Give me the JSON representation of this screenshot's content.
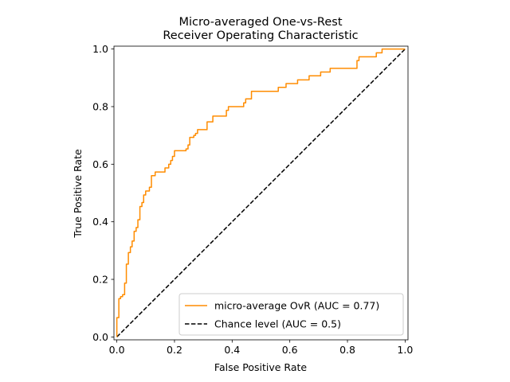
{
  "chart_data": {
    "type": "line",
    "title": [
      "Micro-averaged One-vs-Rest",
      "Receiver Operating Characteristic"
    ],
    "xlabel": "False Positive Rate",
    "ylabel": "True Positive Rate",
    "xlim": [
      -0.01,
      1.01
    ],
    "ylim": [
      -0.01,
      1.01
    ],
    "xticks": [
      0.0,
      0.2,
      0.4,
      0.6,
      0.8,
      1.0
    ],
    "xtick_labels": [
      "0.0",
      "0.2",
      "0.4",
      "0.6",
      "0.8",
      "1.0"
    ],
    "yticks": [
      0.0,
      0.2,
      0.4,
      0.6,
      0.8,
      1.0
    ],
    "ytick_labels": [
      "0.0",
      "0.2",
      "0.4",
      "0.6",
      "0.8",
      "1.0"
    ],
    "grid": false,
    "legend_position": "lower-right",
    "series": [
      {
        "name": "micro-average OvR (AUC = 0.77)",
        "color": "#ff8c00",
        "style": "solid",
        "x": [
          0.0,
          0.0,
          0.007,
          0.007,
          0.013,
          0.013,
          0.02,
          0.02,
          0.027,
          0.027,
          0.033,
          0.033,
          0.04,
          0.04,
          0.047,
          0.047,
          0.053,
          0.053,
          0.06,
          0.06,
          0.067,
          0.067,
          0.073,
          0.073,
          0.08,
          0.08,
          0.087,
          0.087,
          0.093,
          0.093,
          0.1,
          0.1,
          0.113,
          0.113,
          0.12,
          0.12,
          0.133,
          0.133,
          0.167,
          0.167,
          0.18,
          0.18,
          0.187,
          0.187,
          0.193,
          0.193,
          0.2,
          0.2,
          0.24,
          0.24,
          0.247,
          0.247,
          0.253,
          0.253,
          0.267,
          0.267,
          0.273,
          0.273,
          0.28,
          0.28,
          0.293,
          0.293,
          0.3,
          0.3,
          0.313,
          0.313,
          0.333,
          0.333,
          0.38,
          0.38,
          0.387,
          0.387,
          0.393,
          0.393,
          0.44,
          0.44,
          0.447,
          0.447,
          0.467,
          0.467,
          0.48,
          0.48,
          0.56,
          0.56,
          0.587,
          0.587,
          0.627,
          0.627,
          0.667,
          0.667,
          0.707,
          0.707,
          0.74,
          0.74,
          0.833,
          0.833,
          0.84,
          0.84,
          0.9,
          0.9,
          0.92,
          0.92,
          0.993,
          0.993,
          1.0
        ],
        "y": [
          0.0,
          0.067,
          0.067,
          0.133,
          0.133,
          0.14,
          0.14,
          0.147,
          0.147,
          0.187,
          0.187,
          0.253,
          0.253,
          0.293,
          0.293,
          0.313,
          0.313,
          0.333,
          0.333,
          0.367,
          0.367,
          0.38,
          0.38,
          0.407,
          0.407,
          0.453,
          0.453,
          0.467,
          0.467,
          0.493,
          0.493,
          0.507,
          0.507,
          0.52,
          0.52,
          0.56,
          0.56,
          0.573,
          0.573,
          0.587,
          0.587,
          0.6,
          0.6,
          0.613,
          0.613,
          0.627,
          0.627,
          0.647,
          0.647,
          0.653,
          0.653,
          0.667,
          0.667,
          0.693,
          0.693,
          0.7,
          0.7,
          0.707,
          0.707,
          0.72,
          0.72,
          0.72,
          0.72,
          0.72,
          0.72,
          0.747,
          0.747,
          0.767,
          0.767,
          0.787,
          0.787,
          0.8,
          0.8,
          0.8,
          0.8,
          0.813,
          0.813,
          0.827,
          0.827,
          0.853,
          0.853,
          0.853,
          0.853,
          0.867,
          0.867,
          0.88,
          0.88,
          0.893,
          0.893,
          0.907,
          0.907,
          0.92,
          0.92,
          0.933,
          0.933,
          0.96,
          0.96,
          0.973,
          0.973,
          0.987,
          0.987,
          1.0,
          1.0,
          1.0,
          1.0
        ]
      },
      {
        "name": "Chance level (AUC = 0.5)",
        "color": "#000000",
        "style": "dashed",
        "x": [
          0.0,
          1.0
        ],
        "y": [
          0.0,
          1.0
        ]
      }
    ]
  }
}
